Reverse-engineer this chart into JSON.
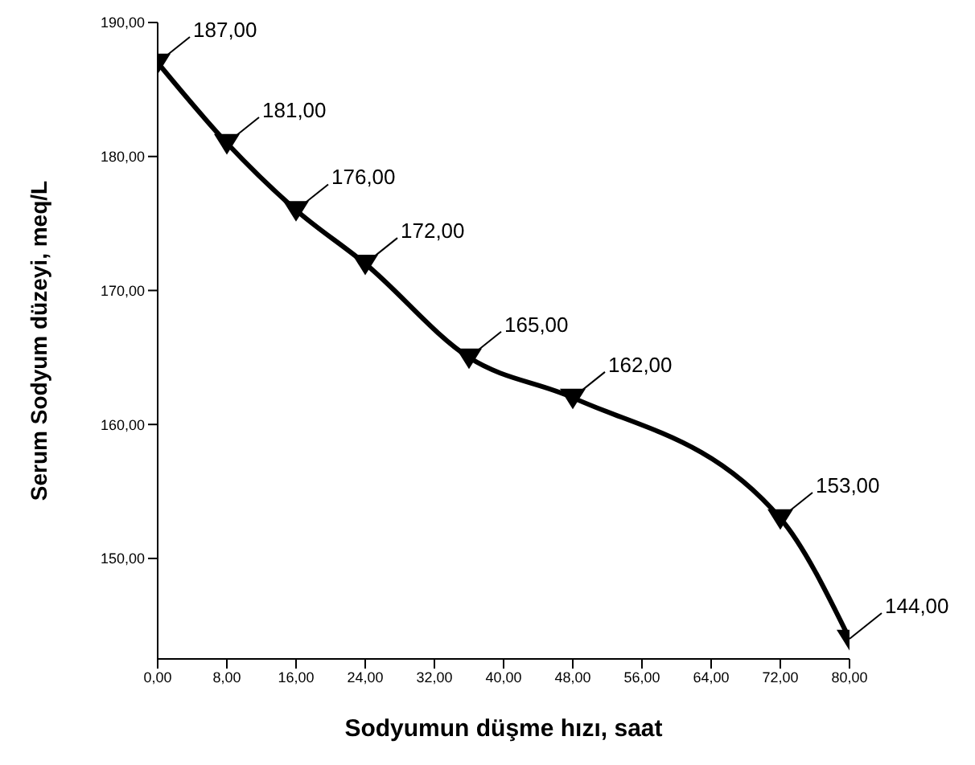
{
  "chart_data": {
    "type": "line",
    "xlabel": "Sodyumun düşme hızı, saat",
    "ylabel": "Serum Sodyum düzeyi, meq/L",
    "x": [
      0,
      8,
      16,
      24,
      36,
      48,
      72,
      80
    ],
    "series": [
      {
        "color": "#000000",
        "values": [
          187,
          181,
          176,
          172,
          165,
          162,
          153,
          144
        ],
        "value_labels": [
          "187,00",
          "181,00",
          "176,00",
          "172,00",
          "165,00",
          "162,00",
          "153,00",
          "144,00"
        ]
      }
    ],
    "xlim": [
      0,
      80
    ],
    "xticks": [
      {
        "value": 0,
        "label": "0,00"
      },
      {
        "value": 8,
        "label": "8,00"
      },
      {
        "value": 16,
        "label": "16,00"
      },
      {
        "value": 24,
        "label": "24,00"
      },
      {
        "value": 32,
        "label": "32,00"
      },
      {
        "value": 40,
        "label": "40,00"
      },
      {
        "value": 48,
        "label": "48,00"
      },
      {
        "value": 56,
        "label": "56,00"
      },
      {
        "value": 64,
        "label": "64,00"
      },
      {
        "value": 72,
        "label": "72,00"
      },
      {
        "value": 80,
        "label": "80,00"
      }
    ],
    "ylim": [
      142.5,
      190
    ],
    "yticks": [
      {
        "value": 150,
        "label": "150,00"
      },
      {
        "value": 160,
        "label": "160,00"
      },
      {
        "value": 170,
        "label": "170,00"
      },
      {
        "value": 180,
        "label": "180,00"
      },
      {
        "value": 190,
        "label": "190,00"
      }
    ],
    "grid": false,
    "legend": false,
    "marker": "triangle",
    "line_style": "solid"
  }
}
